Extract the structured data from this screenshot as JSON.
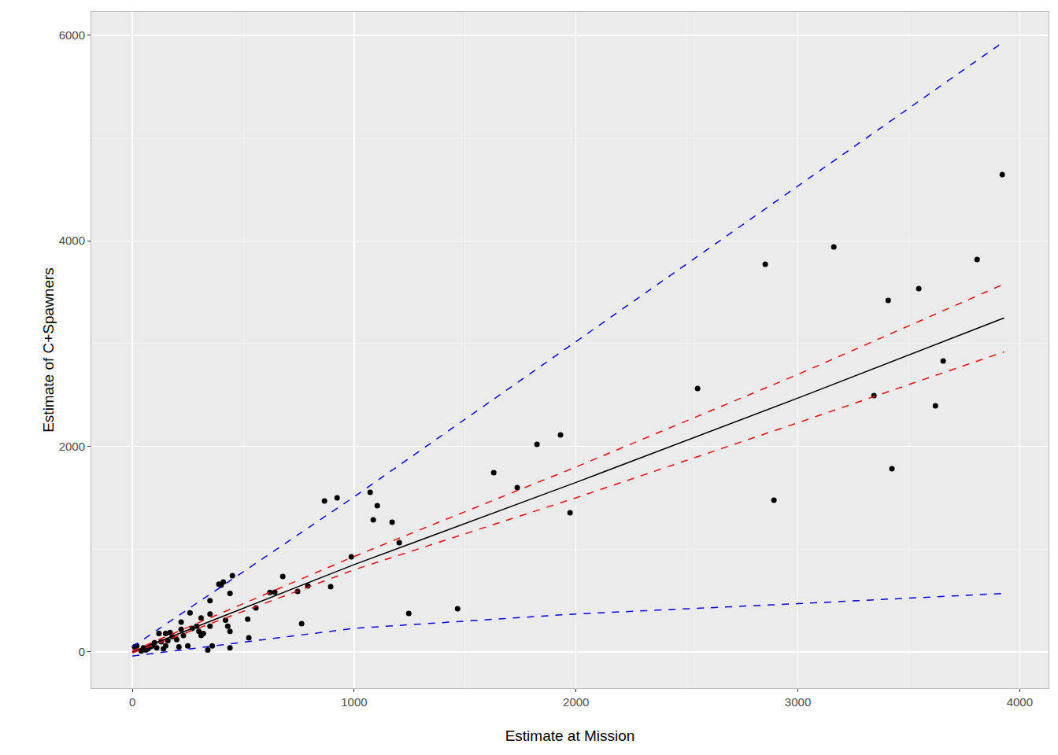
{
  "chart_data": {
    "type": "scatter",
    "x_label": "Estimate at Mission",
    "y_label": "Estimate of C+Spawners",
    "xlim": [
      -185,
      4130
    ],
    "ylim": [
      -352,
      6228
    ],
    "xticks": [
      0,
      1000,
      2000,
      3000,
      4000
    ],
    "yticks": [
      0,
      2000,
      4000,
      6000
    ],
    "grid": true,
    "series": [
      {
        "type": "scatter",
        "marker": "circle",
        "color": "#000000",
        "x": [
          3921,
          3808,
          3655,
          3620,
          3545,
          3407,
          3424,
          3343,
          3162,
          2892,
          2853,
          2548,
          1973,
          1930,
          1824,
          1735,
          1629,
          1466,
          1246,
          1203,
          1171,
          1104,
          1086,
          1072,
          987,
          923,
          866,
          894,
          791,
          763,
          745,
          678,
          642,
          620,
          557,
          525,
          520,
          451,
          440,
          440,
          440,
          430,
          410,
          400,
          390,
          420,
          350,
          350,
          350,
          360,
          340,
          320,
          310,
          300,
          310,
          290,
          260,
          270,
          250,
          220,
          220,
          230,
          210,
          200,
          180,
          170,
          160,
          150,
          150,
          140,
          130,
          120,
          110,
          100,
          90,
          80,
          70,
          60,
          50,
          40,
          20,
          10
        ],
        "values": [
          4644,
          3818,
          2831,
          2395,
          3535,
          3420,
          1783,
          2494,
          3940,
          1477,
          3772,
          2563,
          1354,
          2112,
          2020,
          1599,
          1744,
          421,
          375,
          1063,
          1262,
          1423,
          1285,
          1553,
          926,
          1500,
          1469,
          635,
          643,
          275,
          589,
          735,
          581,
          580,
          428,
          138,
          320,
          742,
          570,
          200,
          40,
          250,
          680,
          650,
          660,
          310,
          500,
          370,
          250,
          60,
          20,
          180,
          160,
          200,
          330,
          250,
          380,
          230,
          60,
          290,
          220,
          160,
          50,
          120,
          150,
          190,
          110,
          180,
          60,
          30,
          100,
          180,
          40,
          90,
          60,
          50,
          30,
          20,
          40,
          10,
          60,
          50
        ]
      },
      {
        "type": "line",
        "line_style": "solid",
        "color": "#000000",
        "x": [
          0,
          1000,
          2000,
          3000,
          3930
        ],
        "values": [
          0,
          850,
          1650,
          2470,
          3250
        ]
      },
      {
        "type": "line",
        "line_style": "dashed",
        "color": "#ff0000",
        "x": [
          0,
          1000,
          2000,
          3000,
          3930
        ],
        "values": [
          10,
          930,
          1800,
          2700,
          3580
        ]
      },
      {
        "type": "line",
        "line_style": "dashed",
        "color": "#ff0000",
        "x": [
          0,
          1000,
          2000,
          3000,
          3930
        ],
        "values": [
          -10,
          800,
          1500,
          2230,
          2920
        ]
      },
      {
        "type": "line",
        "line_style": "dashed",
        "color": "#0000ff",
        "x": [
          0,
          1000,
          2000,
          3000,
          3930
        ],
        "values": [
          50,
          1510,
          3020,
          4530,
          5940
        ]
      },
      {
        "type": "line",
        "line_style": "dashed",
        "color": "#0000ff",
        "x": [
          0,
          1000,
          2000,
          3000,
          3930
        ],
        "values": [
          -40,
          230,
          370,
          470,
          570
        ]
      }
    ]
  }
}
